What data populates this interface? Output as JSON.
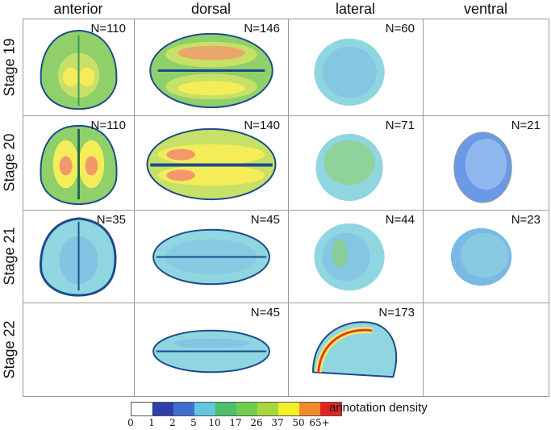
{
  "columns": [
    "anterior",
    "dorsal",
    "lateral",
    "ventral"
  ],
  "rows": [
    "Stage 19",
    "Stage 20",
    "Stage 21",
    "Stage 22"
  ],
  "cells": [
    [
      {
        "n": "N=110"
      },
      {
        "n": "N=146"
      },
      {
        "n": "N=60"
      },
      {
        "n": ""
      }
    ],
    [
      {
        "n": "N=110"
      },
      {
        "n": "N=140"
      },
      {
        "n": "N=71"
      },
      {
        "n": "N=21"
      }
    ],
    [
      {
        "n": "N=35"
      },
      {
        "n": "N=45"
      },
      {
        "n": "N=44"
      },
      {
        "n": "N=23"
      }
    ],
    [
      {
        "n": ""
      },
      {
        "n": "N=45"
      },
      {
        "n": "N=173"
      },
      {
        "n": ""
      }
    ]
  ],
  "legend": {
    "title": "annotation density",
    "ticks": [
      "0",
      "1",
      "2",
      "5",
      "10",
      "17",
      "26",
      "37",
      "50",
      "65+"
    ],
    "colors": [
      "#ffffff",
      "#2f3fa8",
      "#3f6fcf",
      "#5fc8e0",
      "#4cbf6a",
      "#6fcf4a",
      "#a8d63c",
      "#f2ee2a",
      "#f08a2a",
      "#e52421"
    ]
  },
  "palette": {
    "outline": "#1e4a8a",
    "blue": "#7ab8e6",
    "cyan": "#8fd6e0",
    "green": "#8fd06a",
    "yellowgreen": "#c6e068",
    "yellow": "#f5ec5a",
    "orange": "#f2986a",
    "red": "#e23a2a"
  }
}
